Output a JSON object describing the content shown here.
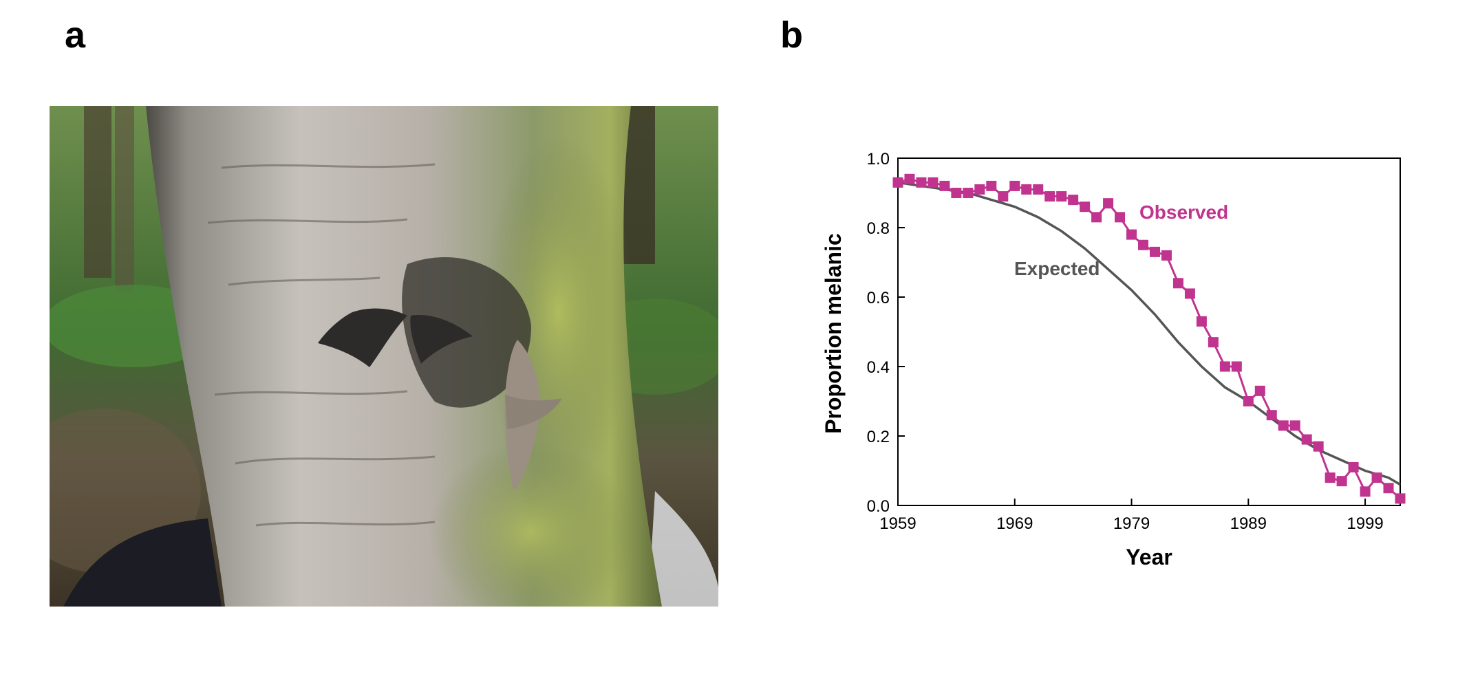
{
  "panels": {
    "a_label": "a",
    "b_label": "b"
  },
  "photo": {
    "subject": "peppered moths (melanic and typical forms) resting on birch bark"
  },
  "colors": {
    "observed": "#c0338f",
    "expected": "#555555",
    "axis": "#000000"
  },
  "chart_data": {
    "type": "line",
    "xlabel": "Year",
    "ylabel": "Proportion melanic",
    "xlim": [
      1959,
      2002
    ],
    "ylim": [
      0,
      1.0
    ],
    "x_ticks": [
      "1959",
      "1969",
      "1979",
      "1989",
      "1999"
    ],
    "y_ticks": [
      "0.0",
      "0.2",
      "0.4",
      "0.6",
      "0.8",
      "1.0"
    ],
    "grid": false,
    "legend": "inline labels",
    "series": [
      {
        "name": "Observed",
        "marker": "square",
        "x": [
          1959,
          1960,
          1961,
          1962,
          1963,
          1964,
          1965,
          1966,
          1967,
          1968,
          1969,
          1970,
          1971,
          1972,
          1973,
          1974,
          1975,
          1976,
          1977,
          1978,
          1979,
          1980,
          1981,
          1982,
          1983,
          1984,
          1985,
          1986,
          1987,
          1988,
          1989,
          1990,
          1991,
          1992,
          1993,
          1994,
          1995,
          1996,
          1997,
          1998,
          1999,
          2000,
          2001,
          2002
        ],
        "y": [
          0.93,
          0.94,
          0.93,
          0.93,
          0.92,
          0.9,
          0.9,
          0.91,
          0.92,
          0.89,
          0.92,
          0.91,
          0.91,
          0.89,
          0.89,
          0.88,
          0.86,
          0.83,
          0.87,
          0.83,
          0.78,
          0.75,
          0.73,
          0.72,
          0.64,
          0.61,
          0.53,
          0.47,
          0.4,
          0.4,
          0.3,
          0.33,
          0.26,
          0.23,
          0.23,
          0.19,
          0.17,
          0.08,
          0.07,
          0.11,
          0.04,
          0.08,
          0.05,
          0.02
        ]
      },
      {
        "name": "Expected",
        "marker": "none",
        "x": [
          1959,
          1961,
          1963,
          1965,
          1967,
          1969,
          1971,
          1973,
          1975,
          1977,
          1979,
          1981,
          1983,
          1985,
          1987,
          1989,
          1991,
          1993,
          1995,
          1997,
          1999,
          2001,
          2002
        ],
        "y": [
          0.93,
          0.92,
          0.91,
          0.9,
          0.88,
          0.86,
          0.83,
          0.79,
          0.74,
          0.68,
          0.62,
          0.55,
          0.47,
          0.4,
          0.34,
          0.3,
          0.25,
          0.2,
          0.16,
          0.13,
          0.1,
          0.08,
          0.06
        ]
      }
    ]
  }
}
